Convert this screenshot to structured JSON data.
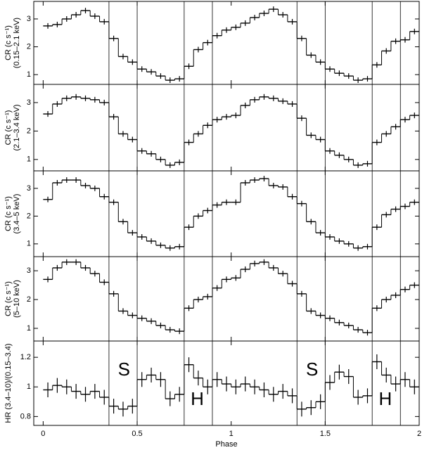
{
  "x_axis": {
    "label": "Phase",
    "xlim": [
      -0.05,
      2.0
    ],
    "xticks": [
      0,
      0.5,
      1,
      1.5,
      2
    ]
  },
  "vlines": [
    0.35,
    0.5,
    0.75,
    0.9,
    1.35,
    1.5,
    1.75,
    1.9
  ],
  "bins": [
    0,
    0.05,
    0.1,
    0.15,
    0.2,
    0.25,
    0.3,
    0.35,
    0.4,
    0.45,
    0.5,
    0.55,
    0.6,
    0.65,
    0.7,
    0.75,
    0.8,
    0.85,
    0.9,
    0.95,
    1,
    1.05,
    1.1,
    1.15,
    1.2,
    1.25,
    1.3,
    1.35,
    1.4,
    1.45,
    1.5,
    1.55,
    1.6,
    1.65,
    1.7,
    1.75,
    1.8,
    1.85,
    1.9,
    1.95,
    2
  ],
  "chart_data": [
    {
      "type": "step",
      "ylabel": [
        "CR (c s⁻¹)",
        "(0.15–2.1 keV)"
      ],
      "ylim": [
        0.65,
        3.63
      ],
      "yticks": [
        1,
        2,
        3
      ],
      "error": 0.1,
      "values": [
        2.75,
        2.8,
        3.0,
        3.15,
        3.3,
        3.1,
        2.9,
        2.3,
        1.65,
        1.45,
        1.2,
        1.1,
        0.95,
        0.8,
        0.85,
        1.3,
        1.9,
        2.15,
        2.4,
        2.6,
        2.7,
        2.85,
        3.05,
        3.2,
        3.35,
        3.15,
        2.9,
        2.3,
        1.7,
        1.45,
        1.2,
        1.05,
        0.95,
        0.8,
        0.85,
        1.35,
        1.85,
        2.2,
        2.25,
        2.55
      ]
    },
    {
      "type": "step",
      "ylabel": [
        "CR (c s⁻¹)",
        "(2.1–3.4 keV)"
      ],
      "ylim": [
        0.6,
        3.64
      ],
      "yticks": [
        1,
        2,
        3
      ],
      "error": 0.1,
      "values": [
        2.6,
        2.95,
        3.15,
        3.2,
        3.15,
        3.1,
        3.0,
        2.5,
        1.9,
        1.7,
        1.3,
        1.2,
        1.0,
        0.8,
        0.9,
        1.6,
        1.9,
        2.2,
        2.4,
        2.5,
        2.55,
        2.9,
        3.1,
        3.2,
        3.15,
        3.05,
        2.95,
        2.45,
        1.85,
        1.7,
        1.3,
        1.15,
        1.0,
        0.8,
        0.85,
        1.6,
        1.9,
        2.15,
        2.4,
        2.55
      ]
    },
    {
      "type": "step",
      "ylabel": [
        "CR (c s⁻¹)",
        "(3.4–5 keV)"
      ],
      "ylim": [
        0.54,
        3.63
      ],
      "yticks": [
        1,
        2,
        3
      ],
      "error": 0.1,
      "values": [
        2.6,
        3.2,
        3.3,
        3.3,
        3.1,
        3.0,
        2.7,
        2.5,
        1.8,
        1.4,
        1.25,
        1.1,
        0.95,
        0.85,
        0.9,
        1.6,
        2.0,
        2.2,
        2.4,
        2.5,
        2.5,
        3.2,
        3.3,
        3.35,
        3.1,
        3.05,
        2.7,
        2.45,
        1.8,
        1.4,
        1.25,
        1.1,
        1.0,
        0.85,
        0.9,
        1.6,
        2.05,
        2.25,
        2.35,
        2.5
      ]
    },
    {
      "type": "step",
      "ylabel": [
        "CR (c s⁻¹)",
        "(5–10 keV)"
      ],
      "ylim": [
        0.56,
        3.49
      ],
      "yticks": [
        1,
        2,
        3
      ],
      "error": 0.1,
      "values": [
        2.7,
        3.1,
        3.3,
        3.3,
        3.1,
        2.9,
        2.6,
        2.2,
        1.6,
        1.45,
        1.35,
        1.25,
        1.1,
        0.95,
        0.9,
        1.7,
        2.0,
        2.1,
        2.4,
        2.7,
        2.75,
        3.05,
        3.25,
        3.3,
        3.1,
        2.9,
        2.55,
        2.2,
        1.6,
        1.45,
        1.35,
        1.2,
        1.1,
        0.95,
        0.85,
        1.7,
        2.0,
        2.15,
        2.35,
        2.5
      ]
    },
    {
      "type": "step",
      "ylabel": [
        "HR (3.4–10)/(0.15–3.4)"
      ],
      "ylim": [
        0.74,
        1.31
      ],
      "yticks": [
        0.8,
        1,
        1.2
      ],
      "error": 0.05,
      "values": [
        0.98,
        1.01,
        1.0,
        0.97,
        0.95,
        0.97,
        0.93,
        0.87,
        0.85,
        0.87,
        1.05,
        1.08,
        1.05,
        0.92,
        0.95,
        1.15,
        1.06,
        1.0,
        1.05,
        1.02,
        1.0,
        1.02,
        1.0,
        0.98,
        0.95,
        0.97,
        0.94,
        0.85,
        0.86,
        0.9,
        1.03,
        1.1,
        1.07,
        0.93,
        0.94,
        1.17,
        1.08,
        1.02,
        1.05,
        1.0
      ],
      "annotations": [
        {
          "text": "S",
          "x": 0.43,
          "y": 1.11
        },
        {
          "text": "H",
          "x": 0.82,
          "y": 0.91
        },
        {
          "text": "S",
          "x": 1.43,
          "y": 1.11
        },
        {
          "text": "H",
          "x": 1.82,
          "y": 0.91
        }
      ]
    }
  ]
}
